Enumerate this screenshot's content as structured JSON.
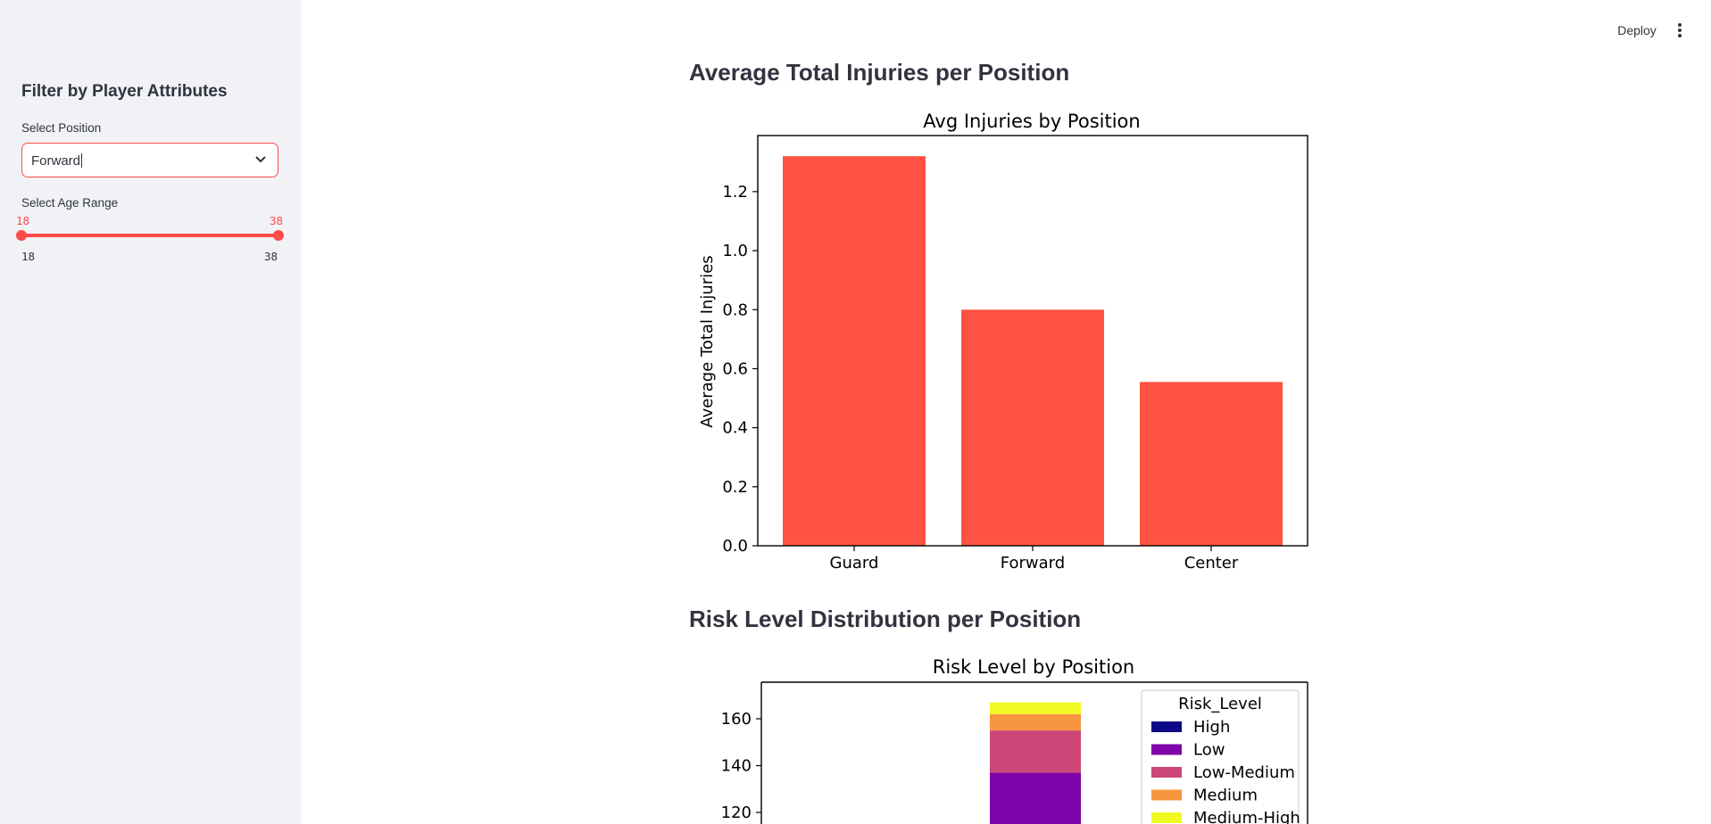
{
  "header": {
    "deploy_label": "Deploy",
    "menu_icon": "vertical-ellipsis-icon"
  },
  "sidebar": {
    "title": "Filter by Player Attributes",
    "position_label": "Select Position",
    "position_value": "Forward",
    "age_label": "Select Age Range",
    "age_min": "18",
    "age_max": "38",
    "age_range_min": "18",
    "age_range_max": "38"
  },
  "main": {
    "heading1": "Average Total Injuries per Position",
    "heading2": "Risk Level Distribution per Position"
  },
  "colors": {
    "accent": "#ff4b4b",
    "bar": "#ff5242"
  },
  "chart_data": [
    {
      "type": "bar",
      "title": "Avg Injuries by Position",
      "xlabel": "",
      "ylabel": "Average Total Injuries",
      "categories": [
        "Guard",
        "Forward",
        "Center"
      ],
      "values": [
        1.32,
        0.8,
        0.555
      ],
      "ylim": [
        0,
        1.39
      ],
      "yticks": [
        "0.0",
        "0.2",
        "0.4",
        "0.6",
        "0.8",
        "1.0",
        "1.2"
      ],
      "grid": false
    },
    {
      "type": "bar",
      "stacked": true,
      "title": "Risk Level by Position",
      "legend_title": "Risk_Level",
      "legend_position": "top-right",
      "yticks": [
        "120",
        "140",
        "160"
      ],
      "visible_stack": {
        "bar_index": 1,
        "segments": [
          {
            "name": "Low",
            "value": 137
          },
          {
            "name": "Low-Medium",
            "value": 18
          },
          {
            "name": "Medium",
            "value": 7
          },
          {
            "name": "Medium-High",
            "value": 5
          }
        ]
      },
      "series": [
        {
          "name": "High",
          "color": "#0d0887"
        },
        {
          "name": "Low",
          "color": "#7e03a8"
        },
        {
          "name": "Low-Medium",
          "color": "#cc4778"
        },
        {
          "name": "Medium",
          "color": "#f89540"
        },
        {
          "name": "Medium-High",
          "color": "#f0f921"
        }
      ]
    }
  ]
}
